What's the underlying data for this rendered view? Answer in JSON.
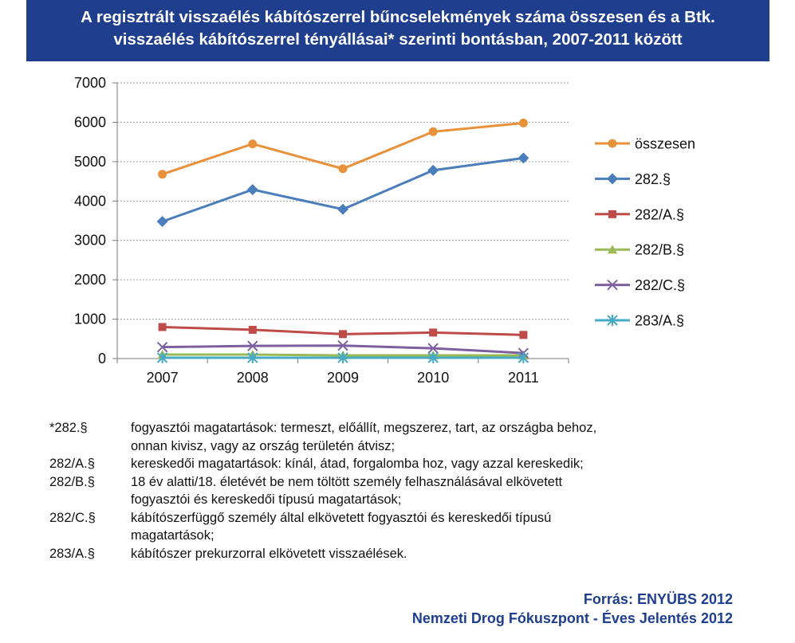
{
  "title": {
    "line1": "A regisztrált visszaélés kábítószerrel bűncselekmények száma összesen és a Btk.",
    "line2": "visszaélés kábítószerrel tényállásai* szerinti bontásban, 2007-2011 között"
  },
  "chart_data": {
    "type": "line",
    "x": [
      "2007",
      "2008",
      "2009",
      "2010",
      "2011"
    ],
    "yticks": [
      "0",
      "1000",
      "2000",
      "3000",
      "4000",
      "5000",
      "6000",
      "7000"
    ],
    "ylim": [
      0,
      7000
    ],
    "grid": true,
    "legend_position": "right",
    "series": [
      {
        "name": "összesen",
        "values": [
          4680,
          5450,
          4820,
          5760,
          5980
        ],
        "color": "#e8913a",
        "marker": "circle"
      },
      {
        "name": "282.§",
        "values": [
          3480,
          4290,
          3790,
          4780,
          5090
        ],
        "color": "#4a7ebb",
        "marker": "diamond"
      },
      {
        "name": "282/A.§",
        "values": [
          800,
          730,
          620,
          660,
          600
        ],
        "color": "#be4b48",
        "marker": "square"
      },
      {
        "name": "282/B.§",
        "values": [
          100,
          100,
          80,
          80,
          80
        ],
        "color": "#98b954",
        "marker": "triangle"
      },
      {
        "name": "282/C.§",
        "values": [
          290,
          320,
          330,
          260,
          140
        ],
        "color": "#7d60a0",
        "marker": "x"
      },
      {
        "name": "283/A.§",
        "values": [
          20,
          20,
          20,
          20,
          20
        ],
        "color": "#46aac5",
        "marker": "star"
      }
    ]
  },
  "notes": [
    {
      "code": "*282.§",
      "lines": [
        "fogyasztói magatartások: termeszt, előállít, megszerez, tart, az országba behoz,",
        "onnan kivisz, vagy az ország területén átvisz;"
      ]
    },
    {
      "code": "282/A.§",
      "lines": [
        "kereskedői magatartások: kínál, átad, forgalomba hoz, vagy azzal kereskedik;"
      ]
    },
    {
      "code": "282/B.§",
      "lines": [
        "18 év alatti/18. életévét be nem töltött személy felhasználásával elkövetett",
        "fogyasztói és kereskedői típusú magatartások;"
      ]
    },
    {
      "code": "282/C.§",
      "lines": [
        "kábítószerfüggő személy által elkövetett fogyasztói és kereskedői típusú",
        "magatartások;"
      ]
    },
    {
      "code": "283/A.§",
      "lines": [
        "kábítószer prekurzorral elkövetett visszaélések."
      ]
    }
  ],
  "source": {
    "line1": "Forrás: ENYÜBS 2012",
    "line2": "Nemzeti Drog Fókuszpont - Éves Jelentés 2012"
  }
}
